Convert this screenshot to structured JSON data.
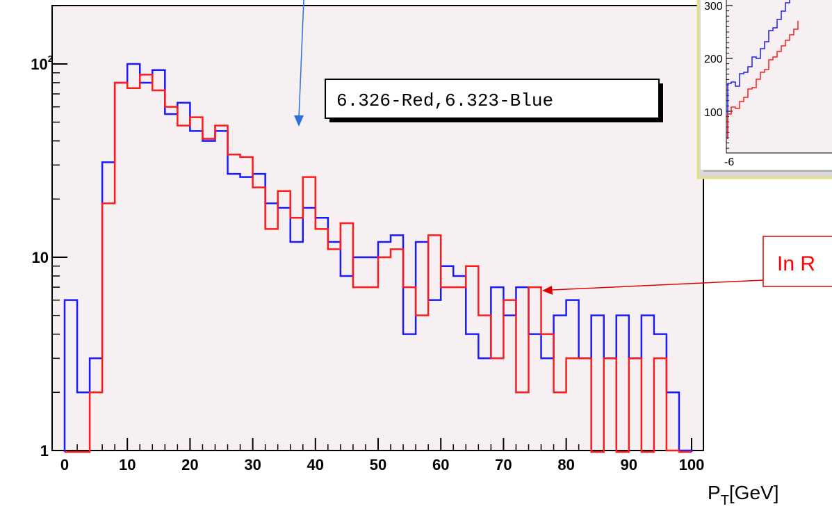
{
  "chart_data": {
    "type": "histogram",
    "title": "",
    "xlabel": "P",
    "xlabel_sub": "T",
    "xlabel_unit": "[GeV]",
    "ylabel": "",
    "xlim": [
      0,
      100
    ],
    "ylim": [
      1,
      200
    ],
    "yscale": "log",
    "bin_width": 2,
    "x_ticks": [
      "0",
      "10",
      "20",
      "30",
      "40",
      "50",
      "60",
      "70",
      "80",
      "90",
      "100"
    ],
    "y_ticks": [
      {
        "value": 1,
        "base": "1",
        "exp": ""
      },
      {
        "value": 10,
        "base": "10",
        "exp": ""
      },
      {
        "value": 100,
        "base": "10",
        "exp": "2"
      }
    ],
    "legend_text": "6.326-Red,6.323-Blue",
    "series": [
      {
        "color": "#1a1aff",
        "values": [
          6,
          2,
          3,
          31,
          80,
          100,
          80,
          93,
          55,
          63,
          45,
          40,
          45,
          27,
          26,
          27,
          19,
          18,
          12,
          18,
          16,
          12,
          8,
          10,
          10,
          12,
          13,
          4,
          12,
          6,
          9,
          8,
          4,
          3,
          7,
          5,
          7,
          4,
          3,
          5,
          6,
          3,
          5,
          3,
          5,
          3,
          5,
          4,
          2,
          1
        ]
      },
      {
        "color": "#ff1a1a",
        "values": [
          0,
          0,
          2,
          19,
          80,
          75,
          88,
          73,
          60,
          48,
          53,
          41,
          48,
          34,
          33,
          23,
          14,
          22,
          16,
          26,
          14,
          11,
          15,
          7,
          7,
          10,
          11,
          7,
          5,
          13,
          7,
          7,
          9,
          5,
          3,
          6,
          2,
          7,
          4,
          2,
          3,
          3,
          0,
          3,
          0,
          3,
          0,
          3,
          1,
          0
        ]
      }
    ]
  },
  "inset": {
    "y_ticks": [
      "300",
      "200",
      "100"
    ],
    "x_tick": "-6"
  },
  "callout": {
    "text": "In R"
  },
  "colors": {
    "plot_background": "#f7f0f3",
    "blue": "#1a1aff",
    "red": "#ff1a1a",
    "inset_border": "#e6e07a"
  }
}
